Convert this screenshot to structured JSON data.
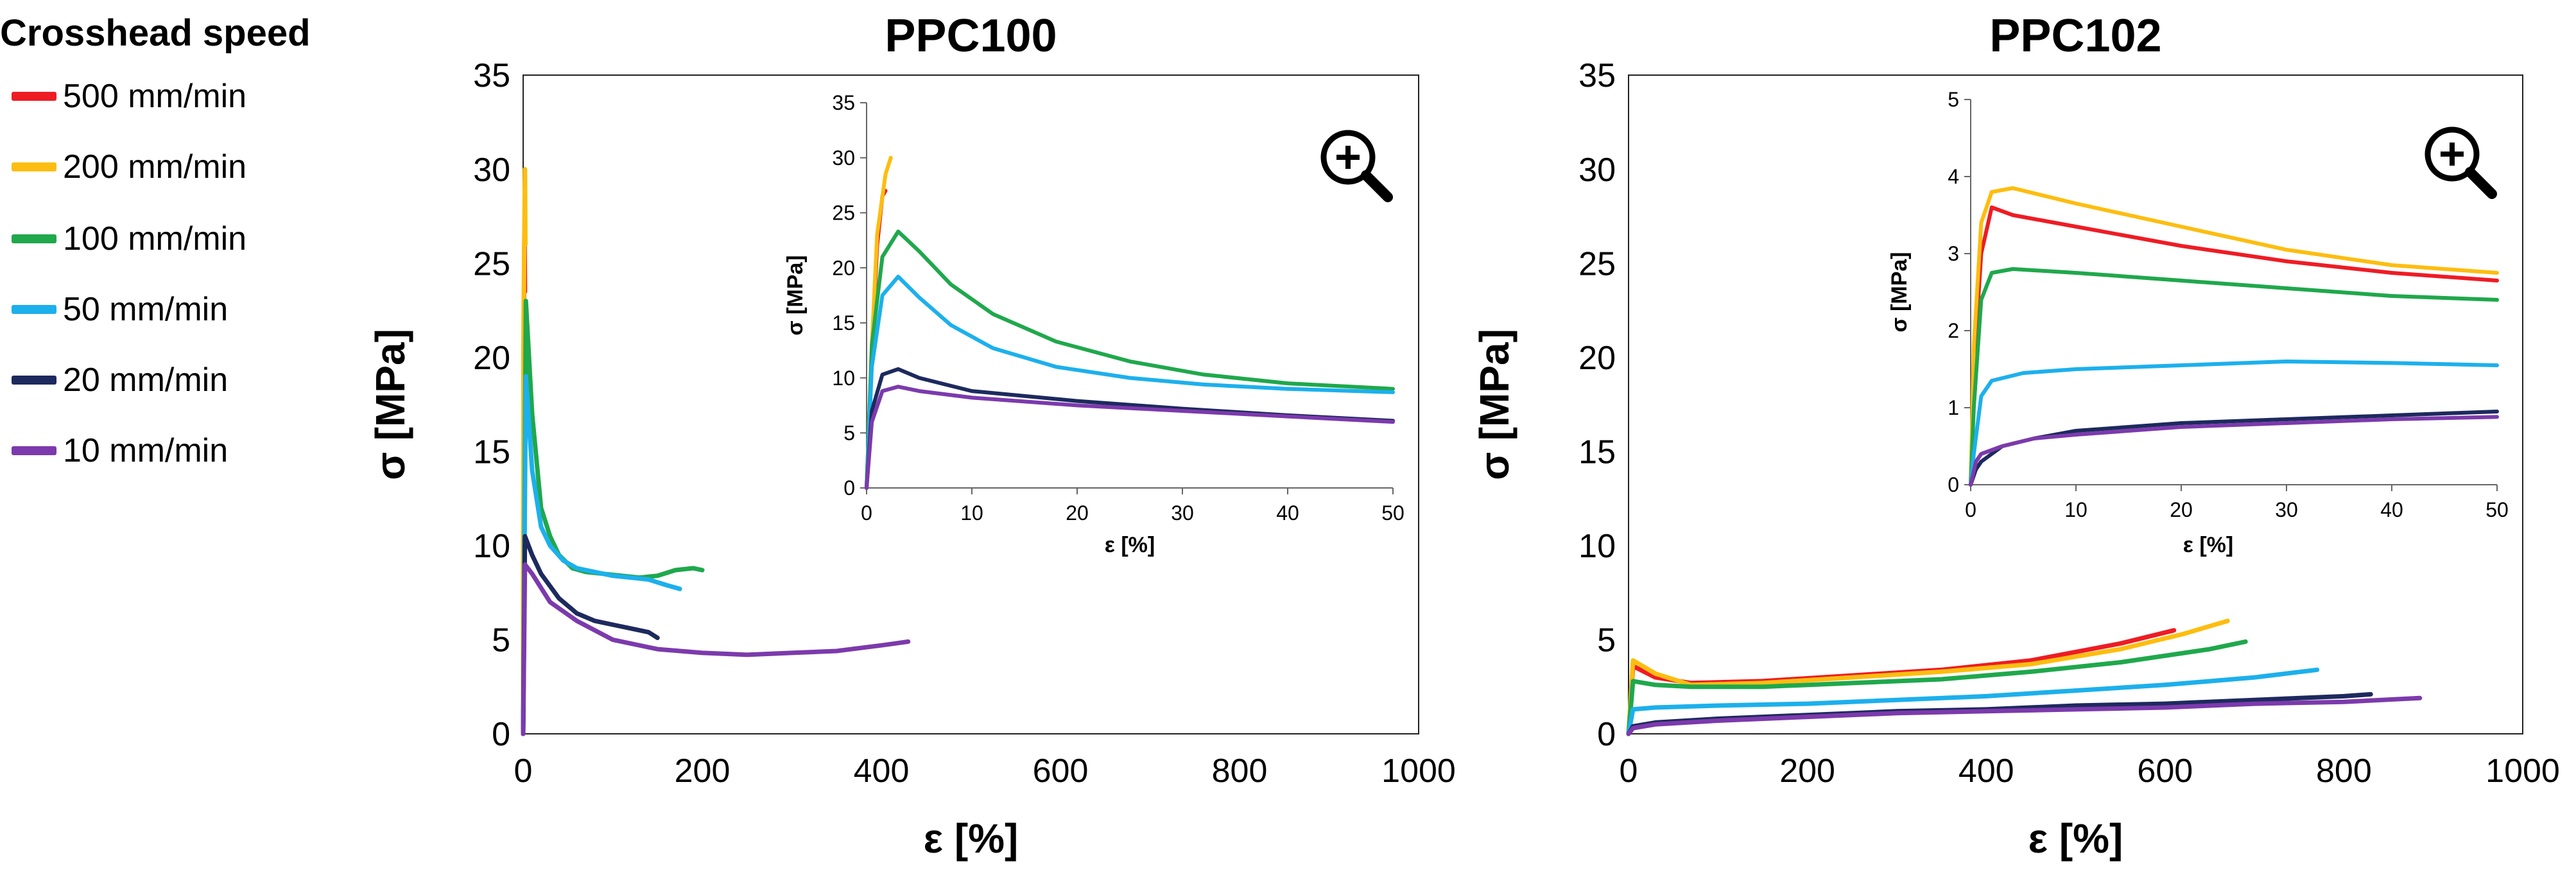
{
  "legend": {
    "title": "Crosshead speed",
    "items": [
      {
        "label": "500 mm/min",
        "color": "#ee1c24"
      },
      {
        "label": "200 mm/min",
        "color": "#fdbd10"
      },
      {
        "label": "100 mm/min",
        "color": "#1fa84c"
      },
      {
        "label": "50 mm/min",
        "color": "#1cb0ec"
      },
      {
        "label": "20 mm/min",
        "color": "#1d2a5e"
      },
      {
        "label": "10 mm/min",
        "color": "#7c3aac"
      }
    ]
  },
  "icons": {
    "zoom": "zoom-in-icon"
  },
  "chart_data": [
    {
      "id": "ppc100-main",
      "type": "line",
      "title": "PPC100",
      "xlabel": "ε [%]",
      "ylabel": "σ [MPa]",
      "xlim": [
        0,
        1000
      ],
      "ylim": [
        0,
        35
      ],
      "xticks": [
        0,
        200,
        400,
        600,
        800,
        1000
      ],
      "yticks": [
        0,
        5,
        10,
        15,
        20,
        25,
        30,
        35
      ],
      "series": [
        {
          "name": "500 mm/min",
          "x": [
            0,
            0.5,
            1.5,
            2
          ],
          "y": [
            0,
            20,
            27,
            23.5
          ]
        },
        {
          "name": "200 mm/min",
          "x": [
            0,
            0.5,
            2,
            2.5
          ],
          "y": [
            0,
            22,
            30,
            26
          ]
        },
        {
          "name": "100 mm/min",
          "x": [
            0,
            3,
            10,
            20,
            30,
            40,
            55,
            70,
            90,
            110,
            130,
            150,
            170,
            190,
            200
          ],
          "y": [
            0,
            23,
            17,
            12,
            10.5,
            9.5,
            8.8,
            8.6,
            8.5,
            8.4,
            8.3,
            8.4,
            8.7,
            8.8,
            8.7
          ]
        },
        {
          "name": "50 mm/min",
          "x": [
            0,
            3,
            10,
            20,
            30,
            45,
            60,
            80,
            100,
            120,
            140,
            160,
            175
          ],
          "y": [
            0,
            19,
            14,
            11,
            10,
            9.2,
            8.8,
            8.6,
            8.4,
            8.3,
            8.2,
            7.9,
            7.7
          ]
        },
        {
          "name": "20 mm/min",
          "x": [
            0,
            2,
            10,
            20,
            40,
            60,
            80,
            100,
            120,
            140,
            150
          ],
          "y": [
            0,
            10.5,
            9.5,
            8.5,
            7.2,
            6.4,
            6.0,
            5.8,
            5.6,
            5.4,
            5.1
          ]
        },
        {
          "name": "10 mm/min",
          "x": [
            0,
            2,
            10,
            30,
            60,
            100,
            150,
            200,
            250,
            300,
            350,
            400,
            430
          ],
          "y": [
            0,
            9,
            8.5,
            7,
            6,
            5,
            4.5,
            4.3,
            4.2,
            4.3,
            4.4,
            4.7,
            4.9
          ]
        }
      ]
    },
    {
      "id": "ppc100-inset",
      "type": "line",
      "title": "",
      "xlabel": "ε [%]",
      "ylabel": "σ [MPa]",
      "xlim": [
        0,
        50
      ],
      "ylim": [
        0,
        35
      ],
      "xticks": [
        0,
        10,
        20,
        30,
        40,
        50
      ],
      "yticks": [
        0,
        5,
        10,
        15,
        20,
        25,
        30,
        35
      ],
      "series": [
        {
          "name": "500 mm/min",
          "x": [
            0,
            0.5,
            1,
            1.5,
            1.8
          ],
          "y": [
            0,
            12,
            22,
            26.5,
            27
          ]
        },
        {
          "name": "200 mm/min",
          "x": [
            0,
            0.5,
            1,
            1.8,
            2.3
          ],
          "y": [
            0,
            13,
            23,
            28.5,
            30
          ]
        },
        {
          "name": "100 mm/min",
          "x": [
            0,
            0.5,
            1.5,
            3,
            5,
            8,
            12,
            18,
            25,
            32,
            40,
            50
          ],
          "y": [
            0,
            13,
            21,
            23.3,
            21.5,
            18.5,
            15.8,
            13.3,
            11.5,
            10.3,
            9.5,
            9.0
          ]
        },
        {
          "name": "50 mm/min",
          "x": [
            0,
            0.5,
            1.5,
            3,
            5,
            8,
            12,
            18,
            25,
            32,
            40,
            50
          ],
          "y": [
            0,
            11,
            17.5,
            19.2,
            17.3,
            14.8,
            12.7,
            11.0,
            10.0,
            9.4,
            9.0,
            8.7
          ]
        },
        {
          "name": "20 mm/min",
          "x": [
            0,
            0.5,
            1.5,
            3,
            5,
            10,
            20,
            30,
            40,
            50
          ],
          "y": [
            0,
            7,
            10.3,
            10.8,
            10.0,
            8.8,
            7.9,
            7.2,
            6.6,
            6.1
          ]
        },
        {
          "name": "10 mm/min",
          "x": [
            0,
            0.5,
            1.5,
            3,
            5,
            10,
            20,
            30,
            40,
            50
          ],
          "y": [
            0,
            6,
            8.8,
            9.2,
            8.8,
            8.2,
            7.5,
            7.0,
            6.5,
            6.0
          ]
        }
      ]
    },
    {
      "id": "ppc102-main",
      "type": "line",
      "title": "PPC102",
      "xlabel": "ε [%]",
      "ylabel": "σ [MPa]",
      "xlim": [
        0,
        1000
      ],
      "ylim": [
        0,
        35
      ],
      "xticks": [
        0,
        200,
        400,
        600,
        800,
        1000
      ],
      "yticks": [
        0,
        5,
        10,
        15,
        20,
        25,
        30,
        35
      ],
      "series": [
        {
          "name": "500 mm/min",
          "x": [
            0,
            5,
            30,
            70,
            150,
            250,
            350,
            450,
            550,
            610
          ],
          "y": [
            0,
            3.6,
            3.0,
            2.7,
            2.8,
            3.1,
            3.4,
            3.9,
            4.8,
            5.5
          ]
        },
        {
          "name": "200 mm/min",
          "x": [
            0,
            5,
            30,
            70,
            150,
            250,
            350,
            450,
            550,
            620,
            670
          ],
          "y": [
            0,
            3.9,
            3.2,
            2.6,
            2.7,
            3.0,
            3.3,
            3.7,
            4.5,
            5.3,
            6.0
          ]
        },
        {
          "name": "100 mm/min",
          "x": [
            0,
            5,
            30,
            70,
            150,
            250,
            350,
            450,
            550,
            650,
            690
          ],
          "y": [
            0,
            2.8,
            2.6,
            2.5,
            2.5,
            2.7,
            2.9,
            3.3,
            3.8,
            4.5,
            4.9
          ]
        },
        {
          "name": "50 mm/min",
          "x": [
            0,
            5,
            30,
            100,
            200,
            300,
            400,
            500,
            600,
            700,
            770
          ],
          "y": [
            0,
            1.3,
            1.4,
            1.5,
            1.6,
            1.8,
            2.0,
            2.3,
            2.6,
            3.0,
            3.4
          ]
        },
        {
          "name": "20 mm/min",
          "x": [
            0,
            5,
            30,
            100,
            200,
            300,
            400,
            500,
            600,
            700,
            800,
            830
          ],
          "y": [
            0,
            0.4,
            0.6,
            0.8,
            1.0,
            1.2,
            1.3,
            1.5,
            1.6,
            1.8,
            2.0,
            2.1
          ]
        },
        {
          "name": "10 mm/min",
          "x": [
            0,
            5,
            30,
            100,
            200,
            300,
            400,
            500,
            600,
            700,
            800,
            885
          ],
          "y": [
            0,
            0.3,
            0.5,
            0.7,
            0.9,
            1.1,
            1.2,
            1.3,
            1.4,
            1.6,
            1.7,
            1.9
          ]
        }
      ]
    },
    {
      "id": "ppc102-inset",
      "type": "line",
      "title": "",
      "xlabel": "ε [%]",
      "ylabel": "σ [MPa]",
      "xlim": [
        0,
        50
      ],
      "ylim": [
        0,
        5
      ],
      "xticks": [
        0,
        10,
        20,
        30,
        40,
        50
      ],
      "yticks": [
        0,
        1,
        2,
        3,
        4,
        5
      ],
      "series": [
        {
          "name": "500 mm/min",
          "x": [
            0,
            0.3,
            1,
            2,
            4,
            10,
            20,
            30,
            40,
            50
          ],
          "y": [
            0,
            1.5,
            3.0,
            3.6,
            3.5,
            3.35,
            3.1,
            2.9,
            2.75,
            2.65
          ]
        },
        {
          "name": "200 mm/min",
          "x": [
            0,
            0.3,
            1,
            2,
            4,
            10,
            20,
            30,
            40,
            50
          ],
          "y": [
            0,
            1.8,
            3.4,
            3.8,
            3.85,
            3.65,
            3.35,
            3.05,
            2.85,
            2.75
          ]
        },
        {
          "name": "100 mm/min",
          "x": [
            0,
            0.3,
            1,
            2,
            4,
            10,
            20,
            30,
            40,
            50
          ],
          "y": [
            0,
            1.0,
            2.4,
            2.75,
            2.8,
            2.75,
            2.65,
            2.55,
            2.45,
            2.4
          ]
        },
        {
          "name": "50 mm/min",
          "x": [
            0,
            0.3,
            1,
            2,
            5,
            10,
            20,
            30,
            40,
            50
          ],
          "y": [
            0,
            0.4,
            1.15,
            1.35,
            1.45,
            1.5,
            1.55,
            1.6,
            1.58,
            1.55
          ]
        },
        {
          "name": "20 mm/min",
          "x": [
            0,
            0.5,
            1,
            3,
            6,
            10,
            20,
            30,
            40,
            50
          ],
          "y": [
            0,
            0.2,
            0.3,
            0.5,
            0.6,
            0.7,
            0.8,
            0.85,
            0.9,
            0.95
          ]
        },
        {
          "name": "10 mm/min",
          "x": [
            0,
            0.5,
            1,
            3,
            6,
            10,
            20,
            30,
            40,
            50
          ],
          "y": [
            0,
            0.3,
            0.4,
            0.5,
            0.6,
            0.65,
            0.75,
            0.8,
            0.85,
            0.88
          ]
        }
      ]
    }
  ]
}
